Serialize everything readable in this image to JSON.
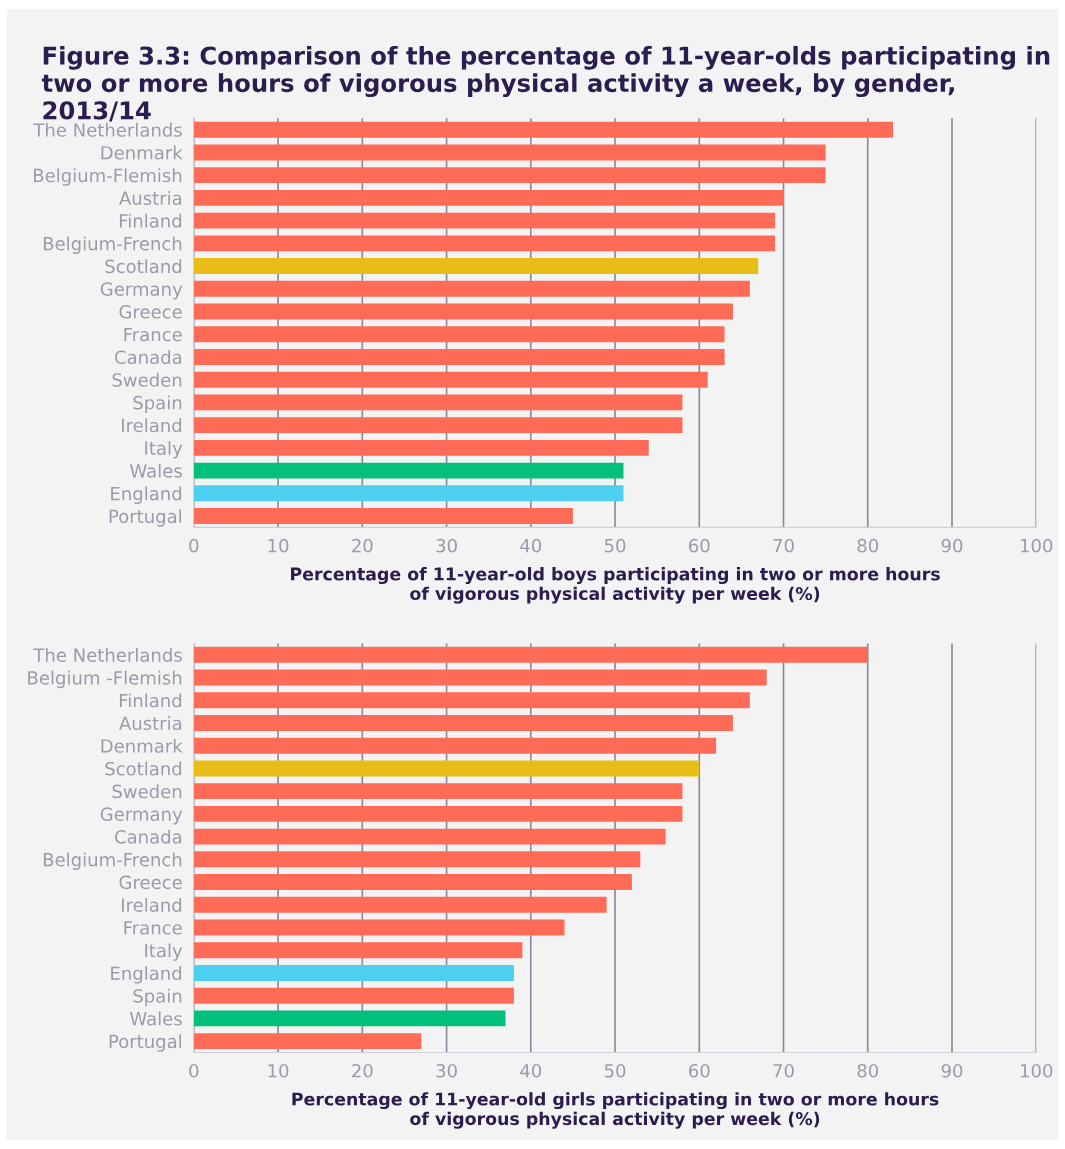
{
  "chart_data": [
    {
      "type": "bar",
      "orientation": "horizontal",
      "title": "Figure 3.3: Comparison of the percentage of 11-year-olds participating in two or more hours of vigorous physical activity a week, by gender, 2013/14",
      "xlabel": "Percentage of 11-year-old boys participating in two or more hours\nof vigorous physical activity per week (%)",
      "categories": [
        "The Netherlands",
        "Denmark",
        "Belgium-Flemish",
        "Austria",
        "Finland",
        "Belgium-French",
        "Scotland",
        "Germany",
        "Greece",
        "France",
        "Canada",
        "Sweden",
        "Spain",
        "Ireland",
        "Italy",
        "Wales",
        "England",
        "Portugal"
      ],
      "values": [
        83,
        75,
        75,
        70,
        69,
        69,
        67,
        66,
        64,
        63,
        63,
        61,
        58,
        58,
        54,
        51,
        51,
        45
      ],
      "colors": [
        "#ff6b57",
        "#ff6b57",
        "#ff6b57",
        "#ff6b57",
        "#ff6b57",
        "#ff6b57",
        "#e8bd17",
        "#ff6b57",
        "#ff6b57",
        "#ff6b57",
        "#ff6b57",
        "#ff6b57",
        "#ff6b57",
        "#ff6b57",
        "#ff6b57",
        "#00c07a",
        "#4dcff0",
        "#ff6b57"
      ],
      "xlim": [
        0,
        100
      ],
      "xticks": [
        0,
        10,
        20,
        30,
        40,
        50,
        60,
        70,
        80,
        90,
        100
      ],
      "grid": "x"
    },
    {
      "type": "bar",
      "orientation": "horizontal",
      "xlabel": "Percentage of 11-year-old girls participating in two or more hours\nof vigorous physical activity per week (%)",
      "categories": [
        "The Netherlands",
        "Belgium -Flemish",
        "Finland",
        "Austria",
        "Denmark",
        "Scotland",
        "Sweden",
        "Germany",
        "Canada",
        "Belgium-French",
        "Greece",
        "Ireland",
        "France",
        "Italy",
        "England",
        "Spain",
        "Wales",
        "Portugal"
      ],
      "values": [
        80,
        68,
        66,
        64,
        62,
        60,
        58,
        58,
        56,
        53,
        52,
        49,
        44,
        39,
        38,
        38,
        37,
        27
      ],
      "colors": [
        "#ff6b57",
        "#ff6b57",
        "#ff6b57",
        "#ff6b57",
        "#ff6b57",
        "#e8bd17",
        "#ff6b57",
        "#ff6b57",
        "#ff6b57",
        "#ff6b57",
        "#ff6b57",
        "#ff6b57",
        "#ff6b57",
        "#ff6b57",
        "#4dcff0",
        "#ff6b57",
        "#00c07a",
        "#ff6b57"
      ],
      "xlim": [
        0,
        100
      ],
      "xticks": [
        0,
        10,
        20,
        30,
        40,
        50,
        60,
        70,
        80,
        90,
        100
      ],
      "grid": "x"
    }
  ]
}
